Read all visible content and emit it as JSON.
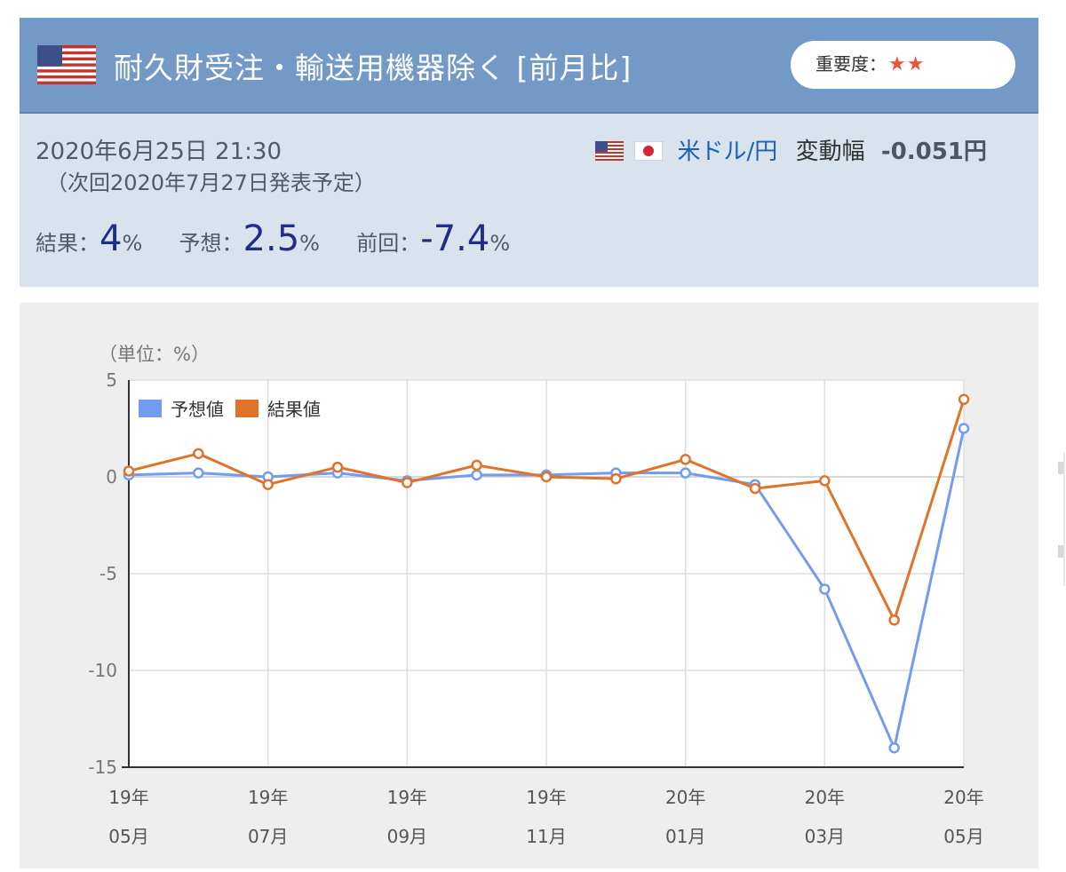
{
  "header": {
    "title": "耐久財受注・輸送用機器除く [前月比]",
    "importance_label": "重要度：",
    "importance_stars": "★★"
  },
  "info": {
    "datetime": "2020年6月25日 21:30",
    "next_release": "（次回2020年7月27日発表予定）",
    "pair": "米ドル/円",
    "change_label": "変動幅",
    "change_value": "-0.051円",
    "result_label": "結果：",
    "result_value": "4",
    "forecast_label": "予想：",
    "forecast_value": "2.5",
    "previous_label": "前回：",
    "previous_value": "-7.4",
    "unit": "%"
  },
  "chart_data": {
    "type": "line",
    "unit_label": "（単位：%）",
    "ylim": [
      -15,
      5
    ],
    "yticks": [
      5,
      0,
      -5,
      -10,
      -15
    ],
    "x": [
      "2019-05",
      "2019-06",
      "2019-07",
      "2019-08",
      "2019-09",
      "2019-10",
      "2019-11",
      "2019-12",
      "2020-01",
      "2020-02",
      "2020-03",
      "2020-04",
      "2020-05"
    ],
    "xtick_labels": [
      {
        "year": "19年",
        "month": "05月"
      },
      {
        "year": "19年",
        "month": "07月"
      },
      {
        "year": "19年",
        "month": "09月"
      },
      {
        "year": "19年",
        "month": "11月"
      },
      {
        "year": "20年",
        "month": "01月"
      },
      {
        "year": "20年",
        "month": "03月"
      },
      {
        "year": "20年",
        "month": "05月"
      }
    ],
    "grid": true,
    "legend_position": "top-left",
    "series": [
      {
        "name": "予想値",
        "color": "#739bf0",
        "values": [
          0.1,
          0.2,
          0.0,
          0.2,
          -0.2,
          0.1,
          0.1,
          0.2,
          0.2,
          -0.4,
          -5.8,
          -14.0,
          2.5
        ]
      },
      {
        "name": "結果値",
        "color": "#e0722a",
        "values": [
          0.3,
          1.2,
          -0.4,
          0.5,
          -0.3,
          0.6,
          0.0,
          -0.1,
          0.9,
          -0.6,
          -0.2,
          -7.4,
          4.0
        ]
      }
    ]
  },
  "colors": {
    "header_bg": "#7399c6",
    "info_bg": "#d9e3ee",
    "chart_bg": "#eeeeee",
    "value_text": "#1f2f88",
    "star": "#e8553a"
  }
}
